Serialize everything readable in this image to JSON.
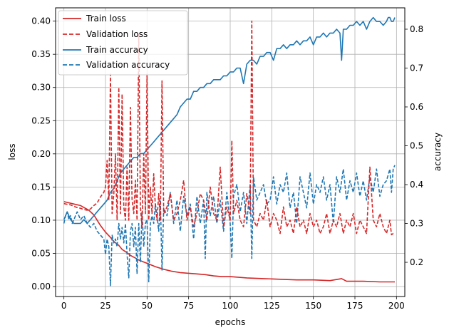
{
  "chart_data": {
    "type": "line",
    "xlabel": "epochs",
    "ylabel_left": "loss",
    "ylabel_right": "accuracy",
    "xlim": [
      -5,
      205
    ],
    "ylim_left": [
      -0.015,
      0.42
    ],
    "ylim_right": [
      0.112,
      0.855
    ],
    "xticks": [
      0,
      25,
      50,
      75,
      100,
      125,
      150,
      175,
      200
    ],
    "yticks_left": [
      0.0,
      0.05,
      0.1,
      0.15,
      0.2,
      0.25,
      0.3,
      0.35,
      0.4
    ],
    "yticks_right": [
      0.2,
      0.3,
      0.4,
      0.5,
      0.6,
      0.7,
      0.8
    ],
    "grid": true,
    "legend_position": "top-left",
    "colors": {
      "loss": "#d62728",
      "accuracy": "#1f77b4"
    },
    "series": [
      {
        "name": "Train loss",
        "axis": "left",
        "style": "solid",
        "color": "#d62728",
        "x": [
          0,
          5,
          10,
          15,
          18,
          20,
          22,
          25,
          28,
          30,
          33,
          35,
          38,
          40,
          43,
          45,
          48,
          50,
          55,
          60,
          65,
          70,
          75,
          80,
          85,
          90,
          95,
          100,
          110,
          120,
          130,
          140,
          150,
          160,
          167,
          170,
          180,
          190,
          199
        ],
        "y": [
          0.128,
          0.125,
          0.122,
          0.115,
          0.108,
          0.1,
          0.092,
          0.082,
          0.074,
          0.068,
          0.062,
          0.056,
          0.051,
          0.047,
          0.043,
          0.04,
          0.037,
          0.035,
          0.03,
          0.026,
          0.023,
          0.021,
          0.02,
          0.019,
          0.018,
          0.016,
          0.015,
          0.015,
          0.013,
          0.012,
          0.011,
          0.01,
          0.01,
          0.009,
          0.012,
          0.008,
          0.008,
          0.007,
          0.007
        ]
      },
      {
        "name": "Validation loss",
        "axis": "left",
        "style": "dashed",
        "color": "#d62728",
        "x": [
          0,
          2,
          4,
          6,
          8,
          10,
          12,
          14,
          16,
          18,
          20,
          22,
          24,
          25,
          26,
          27,
          28,
          29,
          30,
          31,
          32,
          33,
          34,
          35,
          36,
          37,
          38,
          39,
          40,
          41,
          42,
          43,
          44,
          45,
          46,
          47,
          48,
          49,
          50,
          51,
          52,
          53,
          54,
          55,
          56,
          57,
          58,
          59,
          60,
          62,
          64,
          66,
          68,
          70,
          72,
          74,
          76,
          78,
          80,
          82,
          84,
          86,
          88,
          90,
          92,
          94,
          96,
          98,
          100,
          101,
          102,
          104,
          106,
          108,
          110,
          112,
          113,
          114,
          116,
          118,
          120,
          122,
          124,
          126,
          128,
          130,
          132,
          134,
          136,
          138,
          140,
          142,
          144,
          146,
          148,
          150,
          152,
          154,
          156,
          158,
          160,
          162,
          164,
          166,
          168,
          170,
          172,
          174,
          176,
          178,
          180,
          182,
          184,
          186,
          188,
          190,
          192,
          194,
          196,
          197,
          198,
          199
        ],
        "y": [
          0.125,
          0.124,
          0.123,
          0.121,
          0.119,
          0.118,
          0.116,
          0.115,
          0.117,
          0.122,
          0.126,
          0.135,
          0.142,
          0.15,
          0.19,
          0.13,
          0.32,
          0.11,
          0.14,
          0.2,
          0.1,
          0.3,
          0.11,
          0.29,
          0.12,
          0.1,
          0.18,
          0.1,
          0.27,
          0.13,
          0.11,
          0.16,
          0.1,
          0.38,
          0.12,
          0.09,
          0.2,
          0.11,
          0.32,
          0.1,
          0.15,
          0.11,
          0.17,
          0.12,
          0.1,
          0.14,
          0.1,
          0.31,
          0.11,
          0.12,
          0.14,
          0.1,
          0.11,
          0.13,
          0.16,
          0.1,
          0.12,
          0.09,
          0.11,
          0.14,
          0.13,
          0.1,
          0.15,
          0.11,
          0.1,
          0.18,
          0.09,
          0.12,
          0.1,
          0.22,
          0.11,
          0.13,
          0.1,
          0.09,
          0.14,
          0.11,
          0.4,
          0.1,
          0.09,
          0.11,
          0.1,
          0.13,
          0.09,
          0.11,
          0.1,
          0.08,
          0.12,
          0.09,
          0.1,
          0.08,
          0.12,
          0.09,
          0.1,
          0.08,
          0.11,
          0.09,
          0.1,
          0.08,
          0.09,
          0.11,
          0.08,
          0.1,
          0.09,
          0.11,
          0.08,
          0.1,
          0.09,
          0.11,
          0.08,
          0.1,
          0.09,
          0.08,
          0.18,
          0.1,
          0.09,
          0.11,
          0.09,
          0.08,
          0.1,
          0.078,
          0.08,
          0.079
        ]
      },
      {
        "name": "Train accuracy",
        "axis": "right",
        "style": "solid",
        "color": "#1f77b4",
        "x": [
          0,
          2,
          4,
          6,
          8,
          10,
          12,
          14,
          16,
          18,
          20,
          22,
          24,
          26,
          28,
          30,
          32,
          34,
          36,
          38,
          40,
          42,
          44,
          46,
          48,
          50,
          52,
          54,
          56,
          58,
          60,
          62,
          64,
          66,
          68,
          70,
          72,
          74,
          76,
          78,
          80,
          82,
          84,
          86,
          88,
          90,
          92,
          94,
          96,
          98,
          100,
          102,
          104,
          106,
          108,
          110,
          112,
          114,
          116,
          118,
          120,
          122,
          124,
          126,
          128,
          130,
          132,
          134,
          136,
          138,
          140,
          142,
          144,
          146,
          148,
          150,
          152,
          154,
          156,
          158,
          160,
          162,
          164,
          166,
          167,
          168,
          170,
          172,
          174,
          176,
          178,
          180,
          182,
          184,
          186,
          188,
          190,
          192,
          194,
          195,
          196,
          197,
          198,
          199
        ],
        "x_note": "",
        "y": [
          0.31,
          0.33,
          0.31,
          0.3,
          0.3,
          0.3,
          0.31,
          0.3,
          0.31,
          0.32,
          0.33,
          0.34,
          0.35,
          0.36,
          0.38,
          0.39,
          0.41,
          0.43,
          0.44,
          0.45,
          0.46,
          0.47,
          0.47,
          0.48,
          0.48,
          0.49,
          0.5,
          0.51,
          0.52,
          0.53,
          0.54,
          0.55,
          0.56,
          0.57,
          0.58,
          0.6,
          0.61,
          0.62,
          0.62,
          0.64,
          0.64,
          0.65,
          0.65,
          0.66,
          0.66,
          0.67,
          0.67,
          0.67,
          0.68,
          0.68,
          0.69,
          0.69,
          0.7,
          0.7,
          0.66,
          0.71,
          0.72,
          0.72,
          0.71,
          0.73,
          0.73,
          0.74,
          0.74,
          0.72,
          0.75,
          0.75,
          0.76,
          0.75,
          0.76,
          0.76,
          0.77,
          0.76,
          0.77,
          0.77,
          0.78,
          0.76,
          0.78,
          0.78,
          0.79,
          0.78,
          0.79,
          0.79,
          0.8,
          0.79,
          0.72,
          0.8,
          0.8,
          0.81,
          0.81,
          0.82,
          0.81,
          0.82,
          0.8,
          0.82,
          0.83,
          0.82,
          0.82,
          0.81,
          0.82,
          0.83,
          0.83,
          0.82,
          0.82,
          0.83
        ]
      },
      {
        "name": "Validation accuracy",
        "axis": "right",
        "style": "dashed",
        "color": "#1f77b4",
        "x": [
          0,
          1,
          2,
          3,
          4,
          5,
          6,
          7,
          8,
          10,
          12,
          14,
          16,
          18,
          20,
          22,
          24,
          25,
          26,
          27,
          28,
          29,
          30,
          31,
          32,
          33,
          34,
          35,
          36,
          37,
          38,
          39,
          40,
          41,
          42,
          43,
          44,
          45,
          46,
          47,
          48,
          49,
          50,
          51,
          52,
          53,
          54,
          55,
          56,
          57,
          58,
          59,
          60,
          62,
          64,
          66,
          68,
          70,
          72,
          74,
          76,
          78,
          80,
          82,
          84,
          85,
          86,
          88,
          90,
          92,
          94,
          96,
          98,
          100,
          101,
          102,
          104,
          106,
          108,
          110,
          112,
          113,
          114,
          116,
          118,
          120,
          122,
          124,
          126,
          128,
          130,
          132,
          134,
          136,
          138,
          140,
          142,
          144,
          146,
          148,
          150,
          152,
          154,
          156,
          158,
          160,
          162,
          164,
          166,
          168,
          170,
          172,
          174,
          176,
          178,
          180,
          182,
          184,
          186,
          188,
          190,
          192,
          194,
          196,
          197,
          198,
          199
        ],
        "y": [
          0.3,
          0.32,
          0.33,
          0.31,
          0.32,
          0.3,
          0.31,
          0.32,
          0.33,
          0.31,
          0.32,
          0.3,
          0.29,
          0.3,
          0.28,
          0.27,
          0.26,
          0.22,
          0.26,
          0.24,
          0.14,
          0.27,
          0.25,
          0.26,
          0.24,
          0.3,
          0.26,
          0.29,
          0.25,
          0.3,
          0.22,
          0.16,
          0.28,
          0.3,
          0.24,
          0.29,
          0.17,
          0.3,
          0.2,
          0.33,
          0.24,
          0.3,
          0.31,
          0.15,
          0.3,
          0.32,
          0.3,
          0.35,
          0.32,
          0.28,
          0.36,
          0.18,
          0.34,
          0.32,
          0.38,
          0.3,
          0.36,
          0.28,
          0.37,
          0.32,
          0.35,
          0.26,
          0.37,
          0.3,
          0.36,
          0.21,
          0.38,
          0.32,
          0.37,
          0.3,
          0.36,
          0.28,
          0.38,
          0.3,
          0.21,
          0.37,
          0.4,
          0.33,
          0.38,
          0.3,
          0.4,
          0.21,
          0.42,
          0.36,
          0.38,
          0.4,
          0.35,
          0.36,
          0.42,
          0.35,
          0.4,
          0.38,
          0.43,
          0.34,
          0.38,
          0.3,
          0.42,
          0.38,
          0.34,
          0.43,
          0.35,
          0.4,
          0.38,
          0.42,
          0.36,
          0.4,
          0.3,
          0.42,
          0.38,
          0.44,
          0.36,
          0.41,
          0.38,
          0.43,
          0.37,
          0.41,
          0.36,
          0.42,
          0.38,
          0.44,
          0.37,
          0.4,
          0.41,
          0.44,
          0.38,
          0.44,
          0.45
        ]
      }
    ]
  }
}
